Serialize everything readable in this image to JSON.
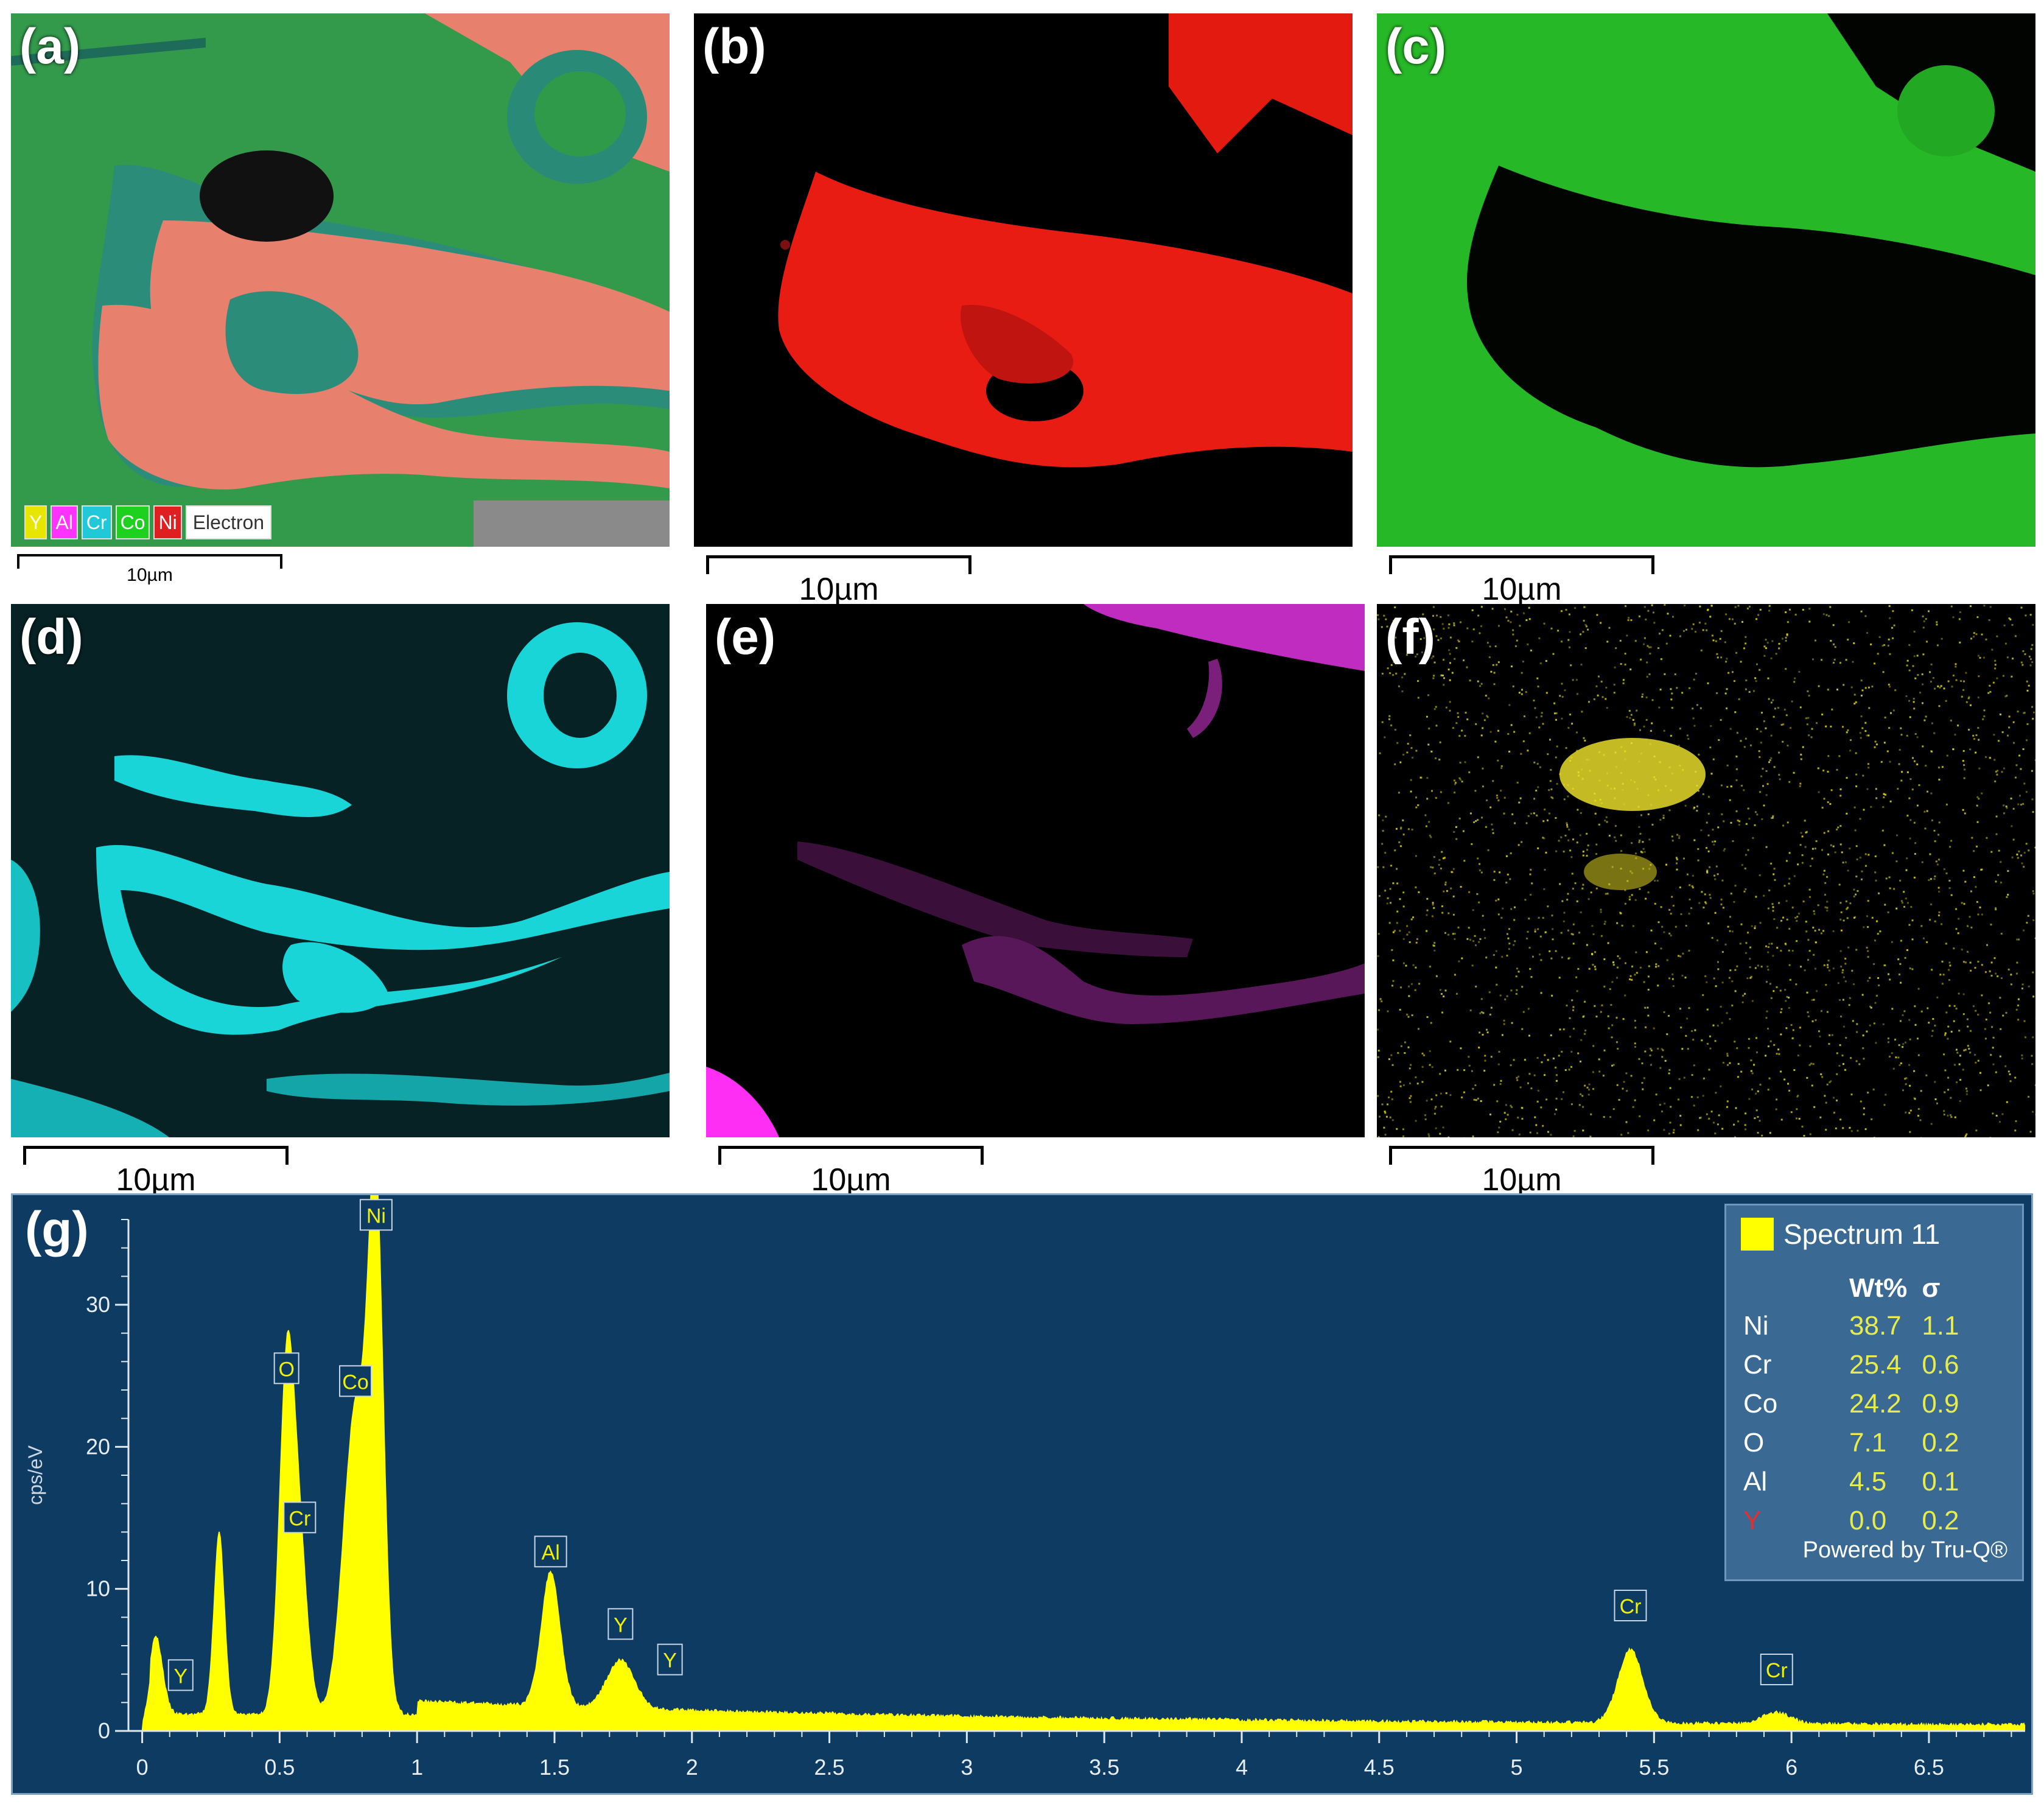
{
  "panels": [
    {
      "id": "a",
      "label": "(a)",
      "scale": "10µm"
    },
    {
      "id": "b",
      "label": "(b)",
      "scale": "10µm"
    },
    {
      "id": "c",
      "label": "(c)",
      "scale": "10µm"
    },
    {
      "id": "d",
      "label": "(d)",
      "scale": "10µm"
    },
    {
      "id": "e",
      "label": "(e)",
      "scale": "10µm"
    },
    {
      "id": "f",
      "label": "(f)",
      "scale": "10µm"
    }
  ],
  "legend_chips": [
    {
      "label": "Y",
      "color": "#e6e600"
    },
    {
      "label": "Al",
      "color": "#ff33ff"
    },
    {
      "label": "Cr",
      "color": "#20c8d8"
    },
    {
      "label": "Co",
      "color": "#1fd11f"
    },
    {
      "label": "Ni",
      "color": "#e02020"
    },
    {
      "label": "Electron",
      "color": "#ffffff"
    }
  ],
  "colors": {
    "ni": "#ff1a10",
    "co": "#27c227",
    "cr": "#19d5d8",
    "al": "#d12fd1",
    "y": "#e8e024",
    "spectrum_bg": "#0e3b62",
    "spectrum_fill": "#ffff00"
  },
  "spectrum": {
    "label": "(g)",
    "legend_name": "Spectrum 11",
    "col_wt": "Wt%",
    "col_sigma": "σ",
    "rows": [
      {
        "el": "Ni",
        "wt": "38.7",
        "sigma": "1.1",
        "highlight": false
      },
      {
        "el": "Cr",
        "wt": "25.4",
        "sigma": "0.6",
        "highlight": false
      },
      {
        "el": "Co",
        "wt": "24.2",
        "sigma": "0.9",
        "highlight": false
      },
      {
        "el": "O",
        "wt": "7.1",
        "sigma": "0.2",
        "highlight": false
      },
      {
        "el": "Al",
        "wt": "4.5",
        "sigma": "0.1",
        "highlight": false
      },
      {
        "el": "Y",
        "wt": "0.0",
        "sigma": "0.2",
        "highlight": true
      }
    ],
    "powered": "Powered by Tru-Q®"
  },
  "chart_data": {
    "type": "area",
    "xlabel": "",
    "ylabel": "cps/eV",
    "xlim": [
      -0.05,
      6.85
    ],
    "ylim": [
      0,
      36
    ],
    "xticks": [
      "0",
      "0.5",
      "1",
      "1.5",
      "2",
      "2.5",
      "3",
      "3.5",
      "4",
      "4.5",
      "5",
      "5.5",
      "6",
      "6.5"
    ],
    "yticks": [
      "0",
      "10",
      "20",
      "30"
    ],
    "peaks": [
      {
        "x": 0.05,
        "y": 5.5,
        "w": 0.025
      },
      {
        "x": 0.28,
        "y": 13.0,
        "w": 0.02
      },
      {
        "x": 0.525,
        "y": 23.5,
        "w": 0.028
      },
      {
        "x": 0.573,
        "y": 11.0,
        "w": 0.03
      },
      {
        "x": 0.776,
        "y": 21.5,
        "w": 0.045
      },
      {
        "x": 0.851,
        "y": 34.5,
        "w": 0.028
      },
      {
        "x": 1.486,
        "y": 9.5,
        "w": 0.035
      },
      {
        "x": 1.74,
        "y": 3.4,
        "w": 0.05
      },
      {
        "x": 5.414,
        "y": 5.2,
        "w": 0.045
      },
      {
        "x": 5.946,
        "y": 0.8,
        "w": 0.05
      }
    ],
    "annotations": [
      {
        "label": "Ni",
        "x": 0.851,
        "y": 35.0
      },
      {
        "label": "O",
        "x": 0.525,
        "y": 24.2
      },
      {
        "label": "Co",
        "x": 0.776,
        "y": 23.3
      },
      {
        "label": "Cr",
        "x": 0.573,
        "y": 13.7
      },
      {
        "label": "Al",
        "x": 1.486,
        "y": 11.3
      },
      {
        "label": "Y",
        "x": 1.74,
        "y": 6.2
      },
      {
        "label": "Y",
        "x": 1.92,
        "y": 3.7
      },
      {
        "label": "Y",
        "x": 0.14,
        "y": 2.6
      },
      {
        "label": "Cr",
        "x": 5.414,
        "y": 7.5
      },
      {
        "label": "Cr",
        "x": 5.946,
        "y": 3.0
      }
    ]
  }
}
